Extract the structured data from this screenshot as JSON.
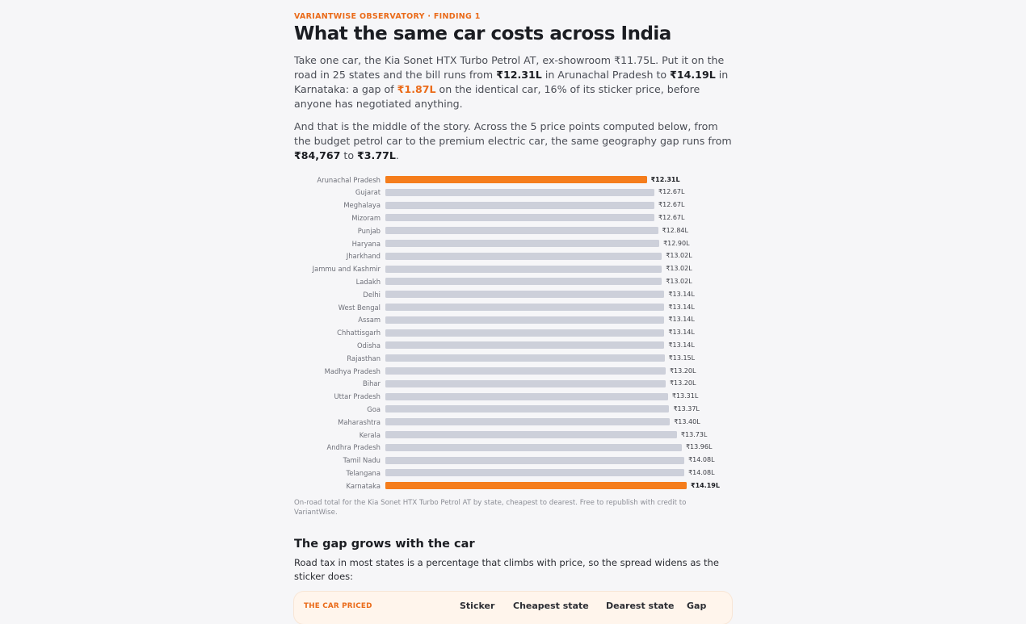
{
  "header": {
    "eyebrow": "VARIANTWISE OBSERVATORY · FINDING 1",
    "title": "What the same car costs across India"
  },
  "intro": {
    "p1_a": "Take one car, the Kia Sonet HTX Turbo Petrol AT, ex-showroom ₹11.75L. Put it on the road in 25 states and the bill runs from ",
    "p1_min": "₹12.31L",
    "p1_b": " in Arunachal Pradesh to ",
    "p1_max": "₹14.19L",
    "p1_c": " in Karnataka: a gap of ",
    "p1_gap": "₹1.87L",
    "p1_d": " on the identical car, 16% of its sticker price, before anyone has negotiated anything.",
    "p2_a": "And that is the middle of the story. Across the 5 price points computed below, from the budget petrol car to the premium electric car, the same geography gap runs from ",
    "p2_min": "₹84,767",
    "p2_b": " to ",
    "p2_max": "₹3.77L",
    "p2_c": "."
  },
  "colors": {
    "accent": "#ea6b1a",
    "bar_highlight": "#f57d1c",
    "bar_default": "#cdd0da"
  },
  "chart_data": {
    "type": "bar",
    "orientation": "horizontal",
    "unit": "₹ lakh",
    "xlim": [
      0,
      14.19
    ],
    "categories": [
      "Arunachal Pradesh",
      "Gujarat",
      "Meghalaya",
      "Mizoram",
      "Punjab",
      "Haryana",
      "Jharkhand",
      "Jammu and Kashmir",
      "Ladakh",
      "Delhi",
      "West Bengal",
      "Assam",
      "Chhattisgarh",
      "Odisha",
      "Rajasthan",
      "Madhya Pradesh",
      "Bihar",
      "Uttar Pradesh",
      "Goa",
      "Maharashtra",
      "Kerala",
      "Andhra Pradesh",
      "Tamil Nadu",
      "Telangana",
      "Karnataka"
    ],
    "values": [
      12.31,
      12.67,
      12.67,
      12.67,
      12.84,
      12.9,
      13.02,
      13.02,
      13.02,
      13.14,
      13.14,
      13.14,
      13.14,
      13.14,
      13.15,
      13.2,
      13.2,
      13.31,
      13.37,
      13.4,
      13.73,
      13.96,
      14.08,
      14.08,
      14.19
    ],
    "value_labels": [
      "₹12.31L",
      "₹12.67L",
      "₹12.67L",
      "₹12.67L",
      "₹12.84L",
      "₹12.90L",
      "₹13.02L",
      "₹13.02L",
      "₹13.02L",
      "₹13.14L",
      "₹13.14L",
      "₹13.14L",
      "₹13.14L",
      "₹13.14L",
      "₹13.15L",
      "₹13.20L",
      "₹13.20L",
      "₹13.31L",
      "₹13.37L",
      "₹13.40L",
      "₹13.73L",
      "₹13.96L",
      "₹14.08L",
      "₹14.08L",
      "₹14.19L"
    ],
    "highlighted": [
      "Arunachal Pradesh",
      "Karnataka"
    ]
  },
  "caption": "On-road total for the Kia Sonet HTX Turbo Petrol AT by state, cheapest to dearest. Free to republish with credit to VariantWise.",
  "section2": {
    "title": "The gap grows with the car",
    "subtitle": "Road tax in most states is a percentage that climbs with price, so the spread widens as the sticker does:"
  },
  "table": {
    "headers": [
      "THE CAR PRICED",
      "Sticker",
      "Cheapest state",
      "Dearest state",
      "Gap"
    ]
  }
}
